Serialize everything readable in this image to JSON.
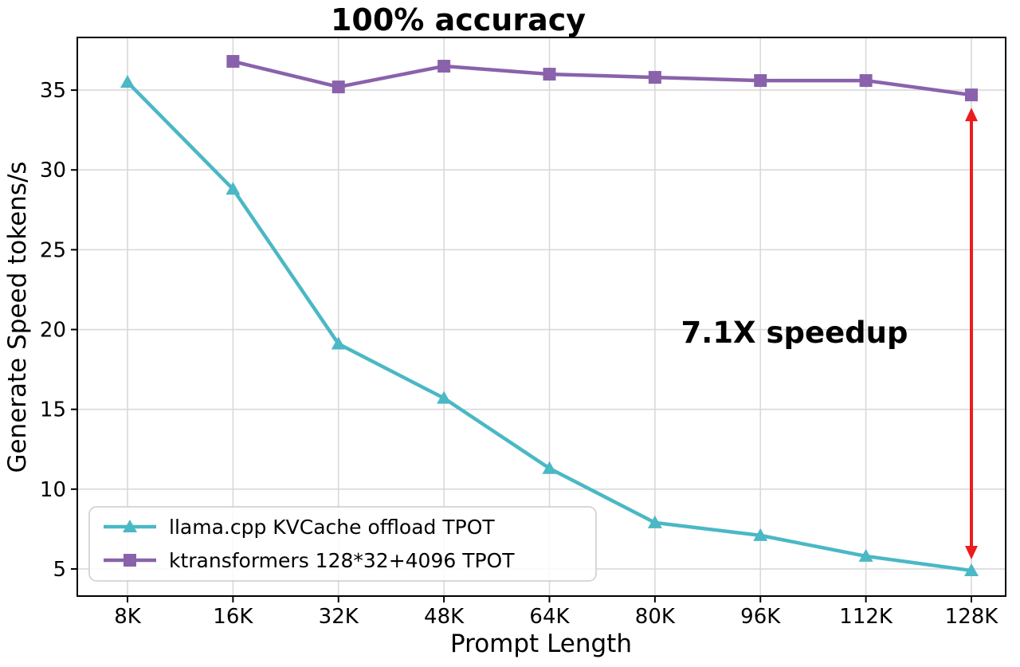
{
  "chart_data": {
    "type": "line",
    "title": "100% accuracy",
    "xlabel": "Prompt Length",
    "ylabel": "Generate Speed tokens/s",
    "categories": [
      "8K",
      "16K",
      "32K",
      "48K",
      "64K",
      "80K",
      "96K",
      "112K",
      "128K"
    ],
    "series": [
      {
        "name": "llama.cpp KVCache offload TPOT",
        "color": "#4ab8c5",
        "marker": "triangle",
        "values": [
          35.5,
          28.8,
          19.1,
          15.7,
          11.3,
          7.9,
          7.1,
          5.8,
          4.9
        ]
      },
      {
        "name": "ktransformers 128*32+4096 TPOT",
        "color": "#8a62ab",
        "marker": "square",
        "values": [
          null,
          36.8,
          35.2,
          36.5,
          36.0,
          35.8,
          35.6,
          35.6,
          34.7
        ]
      }
    ],
    "yticks": [
      5,
      10,
      15,
      20,
      25,
      30,
      35
    ],
    "ylim": [
      3.3,
      38.3
    ],
    "grid": true,
    "legend_position": "lower left",
    "annotations": [
      {
        "text": "7.1X speedup",
        "color": "#ed1c1c",
        "arrow_x_category": "128K",
        "arrow_from_value": 34.7,
        "arrow_to_value": 4.9
      }
    ],
    "title_color": "#ed1c1c",
    "grid_color": "#d9d9d9",
    "frame_color": "#000000"
  }
}
